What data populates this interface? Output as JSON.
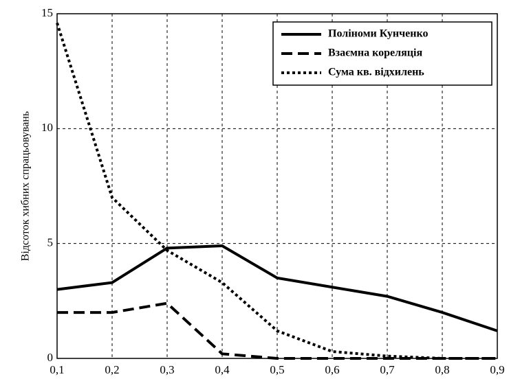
{
  "chart_data": {
    "type": "line",
    "y_label": "Відсоток хибних спрацьовувань",
    "x": [
      0.1,
      0.2,
      0.3,
      0.4,
      0.5,
      0.6,
      0.7,
      0.8,
      0.9
    ],
    "series": [
      {
        "name": "Поліноми Кунченко",
        "color": "#000000",
        "dash": "solid",
        "values": [
          3.0,
          3.3,
          4.8,
          4.9,
          3.5,
          3.1,
          2.7,
          2.0,
          1.2
        ]
      },
      {
        "name": "Взаємна кореляція",
        "color": "#000000",
        "dash": "dashed",
        "values": [
          2.0,
          2.0,
          2.4,
          0.2,
          0.0,
          0.0,
          0.0,
          0.0,
          0.0
        ]
      },
      {
        "name": "Сума кв. відхилень",
        "color": "#000000",
        "dash": "dotted",
        "values": [
          14.6,
          7.0,
          4.7,
          3.3,
          1.2,
          0.3,
          0.1,
          0.0,
          0.0
        ]
      }
    ],
    "xlim": [
      0.1,
      0.9
    ],
    "xticks": [
      {
        "value": 0.1,
        "label": "0,1"
      },
      {
        "value": 0.2,
        "label": "0,2"
      },
      {
        "value": 0.3,
        "label": "0,3"
      },
      {
        "value": 0.4,
        "label": "0,4"
      },
      {
        "value": 0.5,
        "label": "0,5"
      },
      {
        "value": 0.6,
        "label": "0,6"
      },
      {
        "value": 0.7,
        "label": "0,7"
      },
      {
        "value": 0.8,
        "label": "0,8"
      },
      {
        "value": 0.9,
        "label": "0,9"
      }
    ],
    "ylim": [
      0,
      15
    ],
    "yticks": [
      0,
      5,
      10,
      15
    ],
    "grid": true,
    "legend": "upper right"
  }
}
